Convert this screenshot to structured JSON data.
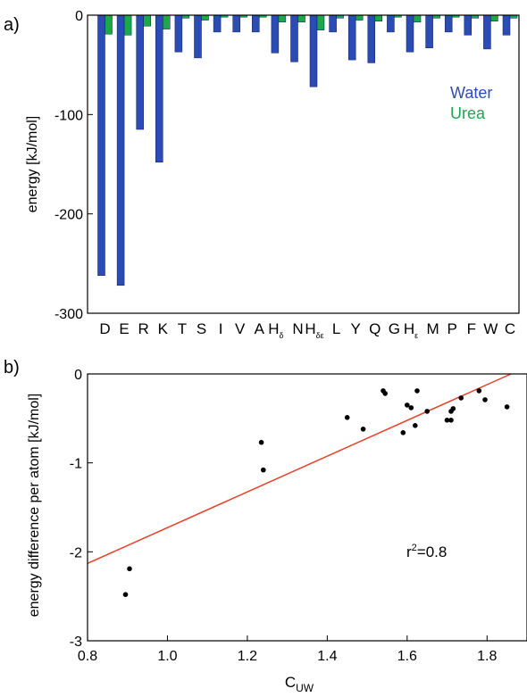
{
  "panel_a": {
    "label": "a)",
    "ylabel": "energy [kJ/mol]",
    "yticks": [
      "0",
      "-100",
      "-200",
      "-300"
    ],
    "legend_water": "Water",
    "legend_urea": "Urea"
  },
  "panel_b": {
    "label": "b)",
    "ylabel": "energy difference per atom [kJ/mol]",
    "xlabel": "C",
    "xlabel_sub": "UW",
    "xticks": [
      "0.8",
      "1.0",
      "1.2",
      "1.4",
      "1.6",
      "1.8"
    ],
    "yticks": [
      "0",
      "-1",
      "-2",
      "-3"
    ],
    "r2_prefix": "r",
    "r2_exp": "2",
    "r2_value": "=0.8"
  },
  "chart_data": [
    {
      "type": "bar",
      "ylabel": "energy [kJ/mol]",
      "ylim": [
        -300,
        0
      ],
      "legend_position": "right",
      "categories": [
        "D",
        "E",
        "R",
        "K",
        "T",
        "S",
        "I",
        "V",
        "A",
        "Hδ",
        "N",
        "Hδε",
        "L",
        "Y",
        "Q",
        "G",
        "Hε",
        "M",
        "P",
        "F",
        "W",
        "C"
      ],
      "category_labels": [
        {
          "main": "D",
          "sub": ""
        },
        {
          "main": "E",
          "sub": ""
        },
        {
          "main": "R",
          "sub": ""
        },
        {
          "main": "K",
          "sub": ""
        },
        {
          "main": "T",
          "sub": ""
        },
        {
          "main": "S",
          "sub": ""
        },
        {
          "main": "I",
          "sub": ""
        },
        {
          "main": "V",
          "sub": ""
        },
        {
          "main": "A",
          "sub": ""
        },
        {
          "main": "H",
          "sub": "δ"
        },
        {
          "main": "N",
          "sub": ""
        },
        {
          "main": "H",
          "sub": "δε"
        },
        {
          "main": "L",
          "sub": ""
        },
        {
          "main": "Y",
          "sub": ""
        },
        {
          "main": "Q",
          "sub": ""
        },
        {
          "main": "G",
          "sub": ""
        },
        {
          "main": "H",
          "sub": "ε"
        },
        {
          "main": "M",
          "sub": ""
        },
        {
          "main": "P",
          "sub": ""
        },
        {
          "main": "F",
          "sub": ""
        },
        {
          "main": "W",
          "sub": ""
        },
        {
          "main": "C",
          "sub": ""
        }
      ],
      "series": [
        {
          "name": "Water",
          "color": "#2b4cb5",
          "values": [
            -262,
            -272,
            -115,
            -148,
            -37,
            -43,
            -17,
            -17,
            -17,
            -38,
            -47,
            -72,
            -17,
            -45,
            -48,
            -17,
            -37,
            -33,
            -17,
            -20,
            -34,
            -20
          ]
        },
        {
          "name": "Urea",
          "color": "#1aa84a",
          "values": [
            -19,
            -20,
            -11,
            -14,
            -3,
            -5,
            -2,
            -2,
            -2,
            -7,
            -7,
            -15,
            -3,
            -5,
            -6,
            -2,
            -7,
            -3,
            -2,
            -3,
            -6,
            -3
          ]
        }
      ]
    },
    {
      "type": "scatter",
      "xlabel": "C_UW",
      "ylabel": "energy difference per atom [kJ/mol]",
      "xlim": [
        0.8,
        1.9
      ],
      "ylim": [
        -3,
        0
      ],
      "grid": false,
      "points": [
        [
          0.895,
          -2.48
        ],
        [
          0.905,
          -2.19
        ],
        [
          1.235,
          -0.77
        ],
        [
          1.24,
          -1.08
        ],
        [
          1.45,
          -0.49
        ],
        [
          1.49,
          -0.62
        ],
        [
          1.54,
          -0.19
        ],
        [
          1.545,
          -0.22
        ],
        [
          1.59,
          -0.66
        ],
        [
          1.6,
          -0.35
        ],
        [
          1.61,
          -0.38
        ],
        [
          1.62,
          -0.58
        ],
        [
          1.625,
          -0.19
        ],
        [
          1.65,
          -0.42
        ],
        [
          1.7,
          -0.52
        ],
        [
          1.71,
          -0.52
        ],
        [
          1.71,
          -0.42
        ],
        [
          1.715,
          -0.39
        ],
        [
          1.735,
          -0.27
        ],
        [
          1.78,
          -0.19
        ],
        [
          1.795,
          -0.29
        ],
        [
          1.85,
          -0.37
        ]
      ],
      "fit_line": {
        "x": [
          0.8,
          1.86
        ],
        "y": [
          -2.13,
          0
        ],
        "color": "#e8402a"
      },
      "annotation": "r²=0.8"
    }
  ]
}
